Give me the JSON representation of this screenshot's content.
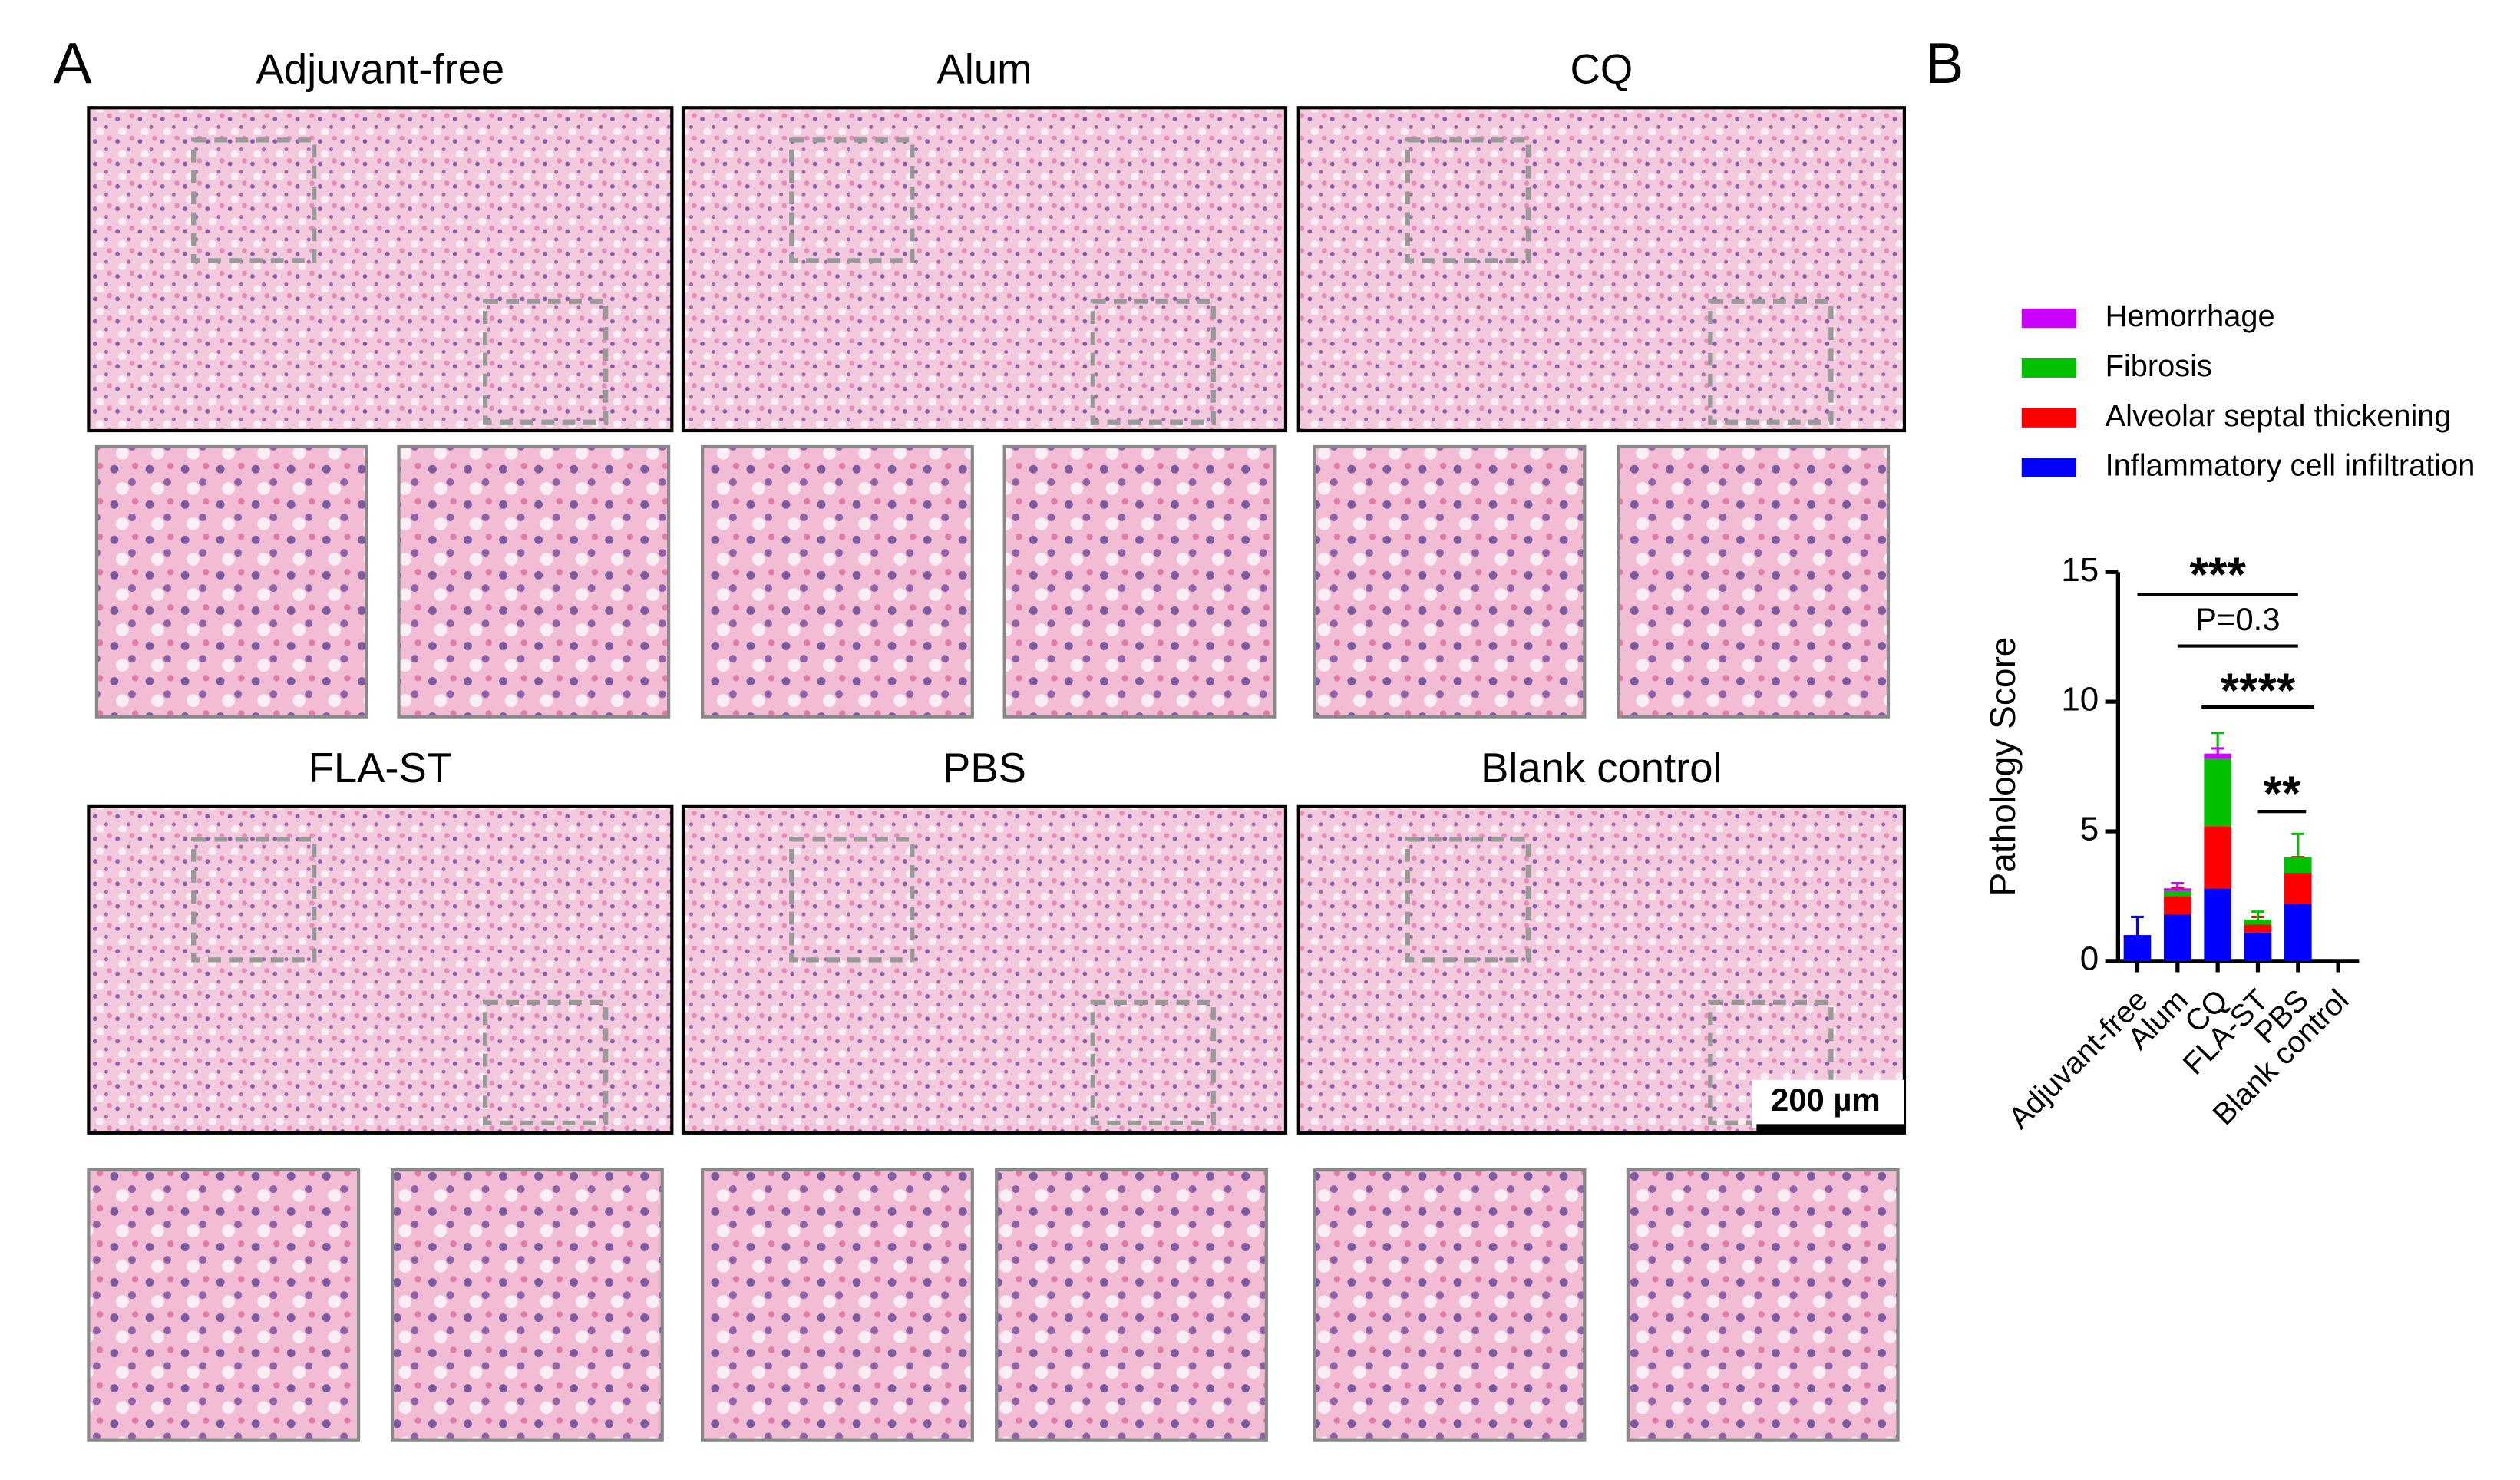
{
  "panel_a": {
    "label": "A",
    "titles": [
      "Adjuvant-free",
      "Alum",
      "CQ",
      "FLA-ST",
      "PBS",
      "Blank control"
    ],
    "scale_bar": "200 µm"
  },
  "chart_data": {
    "type": "stacked_bar",
    "label": "B",
    "ylabel": "Pathology Score",
    "categories": [
      "Adjuvant-free",
      "Alum",
      "CQ",
      "FLA-ST",
      "PBS",
      "Blank control"
    ],
    "series": [
      {
        "name": "Inflammatory cell infiltration",
        "color": "#0000ff",
        "values": [
          1.0,
          1.8,
          2.8,
          1.1,
          2.2,
          0
        ],
        "errors": [
          0.7,
          0.5,
          0.4,
          0.3,
          0.4,
          0
        ]
      },
      {
        "name": "Alveolar septal thickening",
        "color": "#ff0000",
        "values": [
          0,
          0.7,
          2.4,
          0.3,
          1.2,
          0
        ],
        "errors": [
          0,
          0.3,
          1.3,
          0.3,
          0.6,
          0
        ]
      },
      {
        "name": "Fibrosis",
        "color": "#00c000",
        "values": [
          0,
          0.2,
          2.6,
          0.2,
          0.6,
          0
        ],
        "errors": [
          0,
          0.3,
          1.0,
          0.3,
          0.9,
          0
        ]
      },
      {
        "name": "Hemorrhage",
        "color": "#cc00ff",
        "values": [
          0,
          0.1,
          0.2,
          0,
          0,
          0
        ],
        "errors": [
          0,
          0.2,
          0.2,
          0,
          0,
          0
        ]
      }
    ],
    "ylim": [
      0,
      15
    ],
    "yticks": [
      0,
      5,
      10,
      15
    ],
    "annotations": [
      "***",
      "P=0.3",
      "****",
      "**"
    ]
  }
}
